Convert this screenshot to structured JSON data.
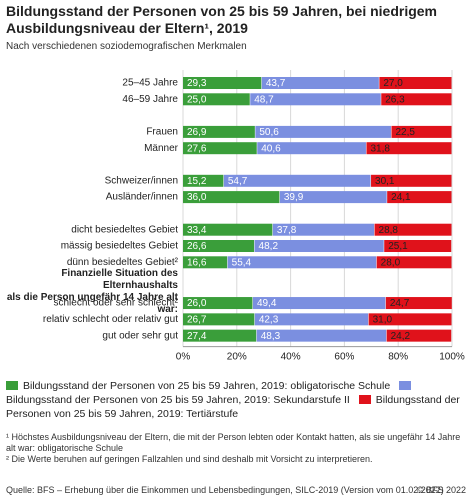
{
  "chart_data": {
    "type": "stacked-barh",
    "title": "Bildungsstand der Personen von 25 bis 59 Jahren, bei niedrigem Ausbildungsniveau der Eltern¹, 2019",
    "subtitle": "Nach verschiedenen soziodemografischen Merkmalen",
    "categories": [
      "25–45 Jahre",
      "46–59 Jahre",
      null,
      "Frauen",
      "Männer",
      null,
      "Schweizer/innen",
      "Ausländer/innen",
      null,
      "dicht besiedeltes Gebiet",
      "mässig besiedeltes Gebiet",
      "dünn besiedeltes Gebiet²",
      "Finanzielle Situation des Elternhaushalts\nals die Person ungefähr 14 Jahre alt war:",
      "schlecht oder sehr schlecht²",
      "relativ schlecht oder relativ gut",
      "gut oder sehr gut"
    ],
    "series": [
      {
        "name": "Bildungsstand der Personen von 25 bis 59 Jahren, 2019: obligatorische Schule",
        "color": "#3a9e3a",
        "values": [
          29.3,
          25.0,
          null,
          26.9,
          27.6,
          null,
          15.2,
          36.0,
          null,
          33.4,
          26.6,
          16.6,
          null,
          26.0,
          26.7,
          27.4
        ],
        "value_labels": [
          "29,3",
          "25,0",
          null,
          "26,9",
          "27,6",
          null,
          "15,2",
          "36,0",
          null,
          "33,4",
          "26,6",
          "16,6",
          null,
          "26,0",
          "26,7",
          "27,4"
        ]
      },
      {
        "name": "Bildungsstand der Personen von 25 bis 59 Jahren, 2019: Sekundarstufe II",
        "color": "#7b8fe0",
        "values": [
          43.7,
          48.7,
          null,
          50.6,
          40.6,
          null,
          54.7,
          39.9,
          null,
          37.8,
          48.2,
          55.4,
          null,
          49.4,
          42.3,
          48.3
        ],
        "value_labels": [
          "43,7",
          "48,7",
          null,
          "50,6",
          "40,6",
          null,
          "54,7",
          "39,9",
          null,
          "37,8",
          "48,2",
          "55,4",
          null,
          "49,4",
          "42,3",
          "48,3"
        ]
      },
      {
        "name": "Bildungsstand der Personen von 25 bis 59 Jahren, 2019: Tertiärstufe",
        "color": "#e0121b",
        "values": [
          27.0,
          26.3,
          null,
          22.5,
          31.8,
          null,
          30.1,
          24.1,
          null,
          28.8,
          25.1,
          28.0,
          null,
          24.7,
          31.0,
          24.2
        ],
        "value_labels": [
          "27,0",
          "26,3",
          null,
          "22,5",
          "31,8",
          null,
          "30,1",
          "24,1",
          null,
          "28,8",
          "25,1",
          "28,0",
          null,
          "24,7",
          "31,0",
          "24,2"
        ]
      }
    ],
    "xlim": [
      0,
      100
    ],
    "xticks": [
      {
        "value": 0,
        "label": "0%"
      },
      {
        "value": 20,
        "label": "20%"
      },
      {
        "value": 40,
        "label": "40%"
      },
      {
        "value": 60,
        "label": "60%"
      },
      {
        "value": 80,
        "label": "80%"
      },
      {
        "value": 100,
        "label": "100%"
      }
    ],
    "grid": true,
    "notes": [
      "¹ Höchstes Ausbildungsniveau der Eltern, die mit der Person lebten oder Kontakt hatten, als sie ungefähr 14 Jahre alt war: obligatorische Schule",
      "² Die Werte beruhen auf geringen Fallzahlen und sind deshalb mit Vorsicht zu interpretieren."
    ],
    "source": "Quelle: BFS – Erhebung über die Einkommen und Lebensbedingungen, SILC-2019 (Version vom 01.02.2022)",
    "credit": "© BFS 2022"
  }
}
